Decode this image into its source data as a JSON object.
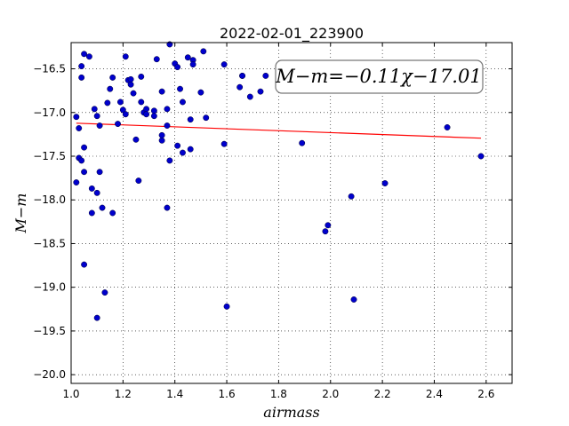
{
  "chart_data": {
    "type": "scatter",
    "title": "2022-02-01_223900",
    "xlabel": "airmass",
    "ylabel": "M−m",
    "xlim": [
      1.0,
      2.7
    ],
    "ylim": [
      -20.1,
      -16.2
    ],
    "y_inverted": true,
    "x_ticks": [
      1.0,
      1.2,
      1.4,
      1.6,
      1.8,
      2.0,
      2.2,
      2.4,
      2.6
    ],
    "x_tick_labels": [
      "1.0",
      "1.2",
      "1.4",
      "1.6",
      "1.8",
      "2.0",
      "2.2",
      "2.4",
      "2.6"
    ],
    "y_ticks": [
      -16.5,
      -17.0,
      -17.5,
      -18.0,
      -18.5,
      -19.0,
      -19.5,
      -20.0
    ],
    "y_tick_labels": [
      "−16.5",
      "−17.0",
      "−17.5",
      "−18.0",
      "−18.5",
      "−19.0",
      "−19.5",
      "−20.0"
    ],
    "grid": true,
    "annotation": "M−m=−0.11χ−17.01",
    "marker_color": "#0000cc",
    "fit_color": "#ff0000",
    "fit_line": {
      "slope": -0.11,
      "intercept": -17.01,
      "x_range": [
        1.02,
        2.58
      ]
    },
    "series": [
      {
        "points": [
          [
            1.02,
            -17.05
          ],
          [
            1.03,
            -17.18
          ],
          [
            1.03,
            -17.52
          ],
          [
            1.02,
            -17.8
          ],
          [
            1.04,
            -17.55
          ],
          [
            1.04,
            -16.6
          ],
          [
            1.04,
            -16.47
          ],
          [
            1.05,
            -16.33
          ],
          [
            1.05,
            -17.4
          ],
          [
            1.05,
            -17.68
          ],
          [
            1.05,
            -18.74
          ],
          [
            1.07,
            -16.36
          ],
          [
            1.08,
            -17.87
          ],
          [
            1.08,
            -18.15
          ],
          [
            1.09,
            -16.96
          ],
          [
            1.1,
            -17.04
          ],
          [
            1.1,
            -17.92
          ],
          [
            1.11,
            -17.15
          ],
          [
            1.11,
            -17.68
          ],
          [
            1.1,
            -19.35
          ],
          [
            1.12,
            -18.09
          ],
          [
            1.13,
            -19.06
          ],
          [
            1.14,
            -16.89
          ],
          [
            1.15,
            -16.73
          ],
          [
            1.16,
            -16.6
          ],
          [
            1.16,
            -18.15
          ],
          [
            1.18,
            -17.13
          ],
          [
            1.19,
            -16.88
          ],
          [
            1.2,
            -16.97
          ],
          [
            1.21,
            -16.36
          ],
          [
            1.21,
            -17.02
          ],
          [
            1.22,
            -16.63
          ],
          [
            1.23,
            -16.62
          ],
          [
            1.23,
            -16.68
          ],
          [
            1.24,
            -16.78
          ],
          [
            1.25,
            -17.31
          ],
          [
            1.26,
            -17.78
          ],
          [
            1.27,
            -16.88
          ],
          [
            1.27,
            -16.59
          ],
          [
            1.28,
            -17.0
          ],
          [
            1.29,
            -16.96
          ],
          [
            1.29,
            -17.02
          ],
          [
            1.32,
            -16.98
          ],
          [
            1.32,
            -17.04
          ],
          [
            1.33,
            -16.39
          ],
          [
            1.35,
            -16.76
          ],
          [
            1.35,
            -17.32
          ],
          [
            1.35,
            -17.26
          ],
          [
            1.37,
            -17.15
          ],
          [
            1.37,
            -16.96
          ],
          [
            1.37,
            -18.09
          ],
          [
            1.38,
            -16.22
          ],
          [
            1.38,
            -17.55
          ],
          [
            1.4,
            -16.44
          ],
          [
            1.41,
            -16.48
          ],
          [
            1.41,
            -17.38
          ],
          [
            1.42,
            -16.73
          ],
          [
            1.43,
            -16.88
          ],
          [
            1.43,
            -17.46
          ],
          [
            1.45,
            -16.37
          ],
          [
            1.46,
            -17.08
          ],
          [
            1.46,
            -17.42
          ],
          [
            1.47,
            -16.4
          ],
          [
            1.47,
            -16.45
          ],
          [
            1.5,
            -16.77
          ],
          [
            1.51,
            -16.3
          ],
          [
            1.52,
            -17.06
          ],
          [
            1.59,
            -16.45
          ],
          [
            1.59,
            -17.36
          ],
          [
            1.6,
            -19.22
          ],
          [
            1.65,
            -16.71
          ],
          [
            1.66,
            -16.58
          ],
          [
            1.66,
            -16.58
          ],
          [
            1.69,
            -16.82
          ],
          [
            1.73,
            -16.76
          ],
          [
            1.75,
            -16.58
          ],
          [
            1.89,
            -17.35
          ],
          [
            1.98,
            -18.36
          ],
          [
            1.99,
            -18.29
          ],
          [
            2.08,
            -17.96
          ],
          [
            2.09,
            -19.14
          ],
          [
            2.21,
            -17.81
          ],
          [
            2.45,
            -17.17
          ],
          [
            2.58,
            -17.5
          ]
        ]
      }
    ]
  }
}
